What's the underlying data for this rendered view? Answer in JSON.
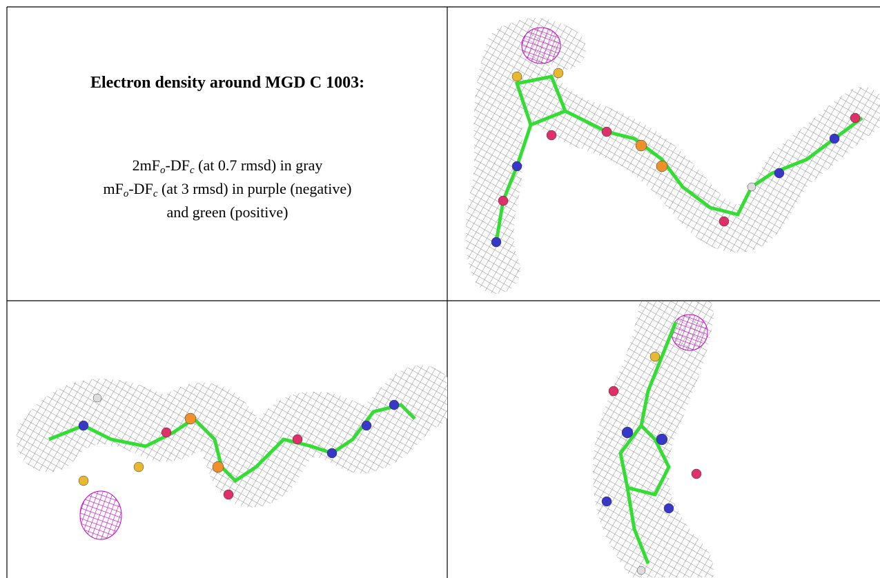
{
  "table": {
    "title": "Electron density around MGD C 1003:",
    "lines": [
      [
        "2mF",
        "o",
        "-DF",
        "c",
        " (at 0.7 rmsd) in gray"
      ],
      [
        "mF",
        "o",
        "-DF",
        "c",
        " (at 3 rmsd) in purple (negative)"
      ],
      [
        "and green (positive)"
      ]
    ]
  }
}
